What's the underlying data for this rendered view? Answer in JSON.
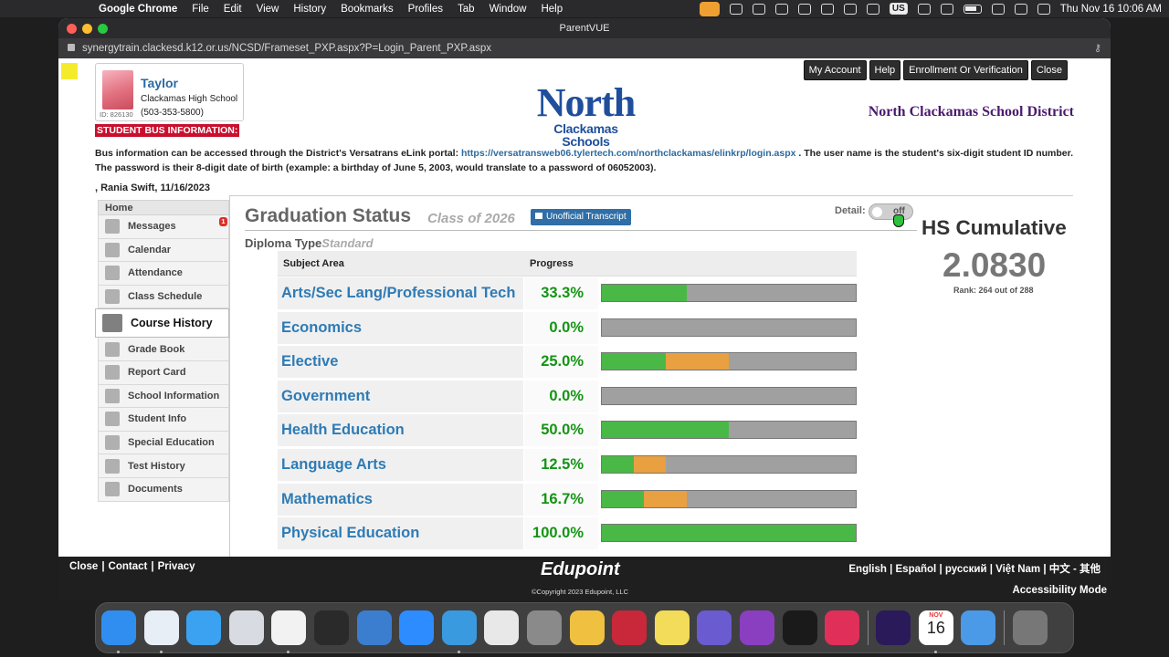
{
  "menubar": {
    "app": "Google Chrome",
    "items": [
      "File",
      "Edit",
      "View",
      "History",
      "Bookmarks",
      "Profiles",
      "Tab",
      "Window",
      "Help"
    ],
    "input_source": "US",
    "datetime": "Thu Nov 16  10:06 AM"
  },
  "window": {
    "title": "ParentVUE",
    "url": "synergytrain.clackesd.k12.or.us/NCSD/Frameset_PXP.aspx?P=Login_Parent_PXP.aspx"
  },
  "student": {
    "name": "Taylor",
    "school": "Clackamas High School",
    "phone": "(503-353-5800)",
    "id_label": "ID: 826130"
  },
  "logo": {
    "line1": "North",
    "line2": "Clackamas Schools"
  },
  "district_name": "North Clackamas School District",
  "top_buttons": [
    "My Account",
    "Help",
    "Enrollment Or Verification",
    "Close"
  ],
  "bus": {
    "heading": "STUDENT BUS INFORMATION:",
    "text_before": "Bus information can be accessed through the District's Versatrans eLink portal: ",
    "link": "https://versatransweb06.tylertech.com/northclackamas/elinkrp/login.aspx",
    "text_after": " . The user name is the student's six-digit student ID number. The password is their 8-digit date of birth (example: a birthday of June 5, 2003, would translate to a password of 06052003)."
  },
  "stamp": ", Rania Swift, 11/16/2023",
  "sidebar": {
    "home": "Home",
    "items": [
      {
        "label": "Messages",
        "icon": "messages-icon",
        "badge": "1"
      },
      {
        "label": "Calendar",
        "icon": "calendar-icon"
      },
      {
        "label": "Attendance",
        "icon": "attendance-icon"
      },
      {
        "label": "Class Schedule",
        "icon": "schedule-icon"
      },
      {
        "label": "Course History",
        "icon": "course-history-icon",
        "active": true
      },
      {
        "label": "Grade Book",
        "icon": "gradebook-icon"
      },
      {
        "label": "Report Card",
        "icon": "report-card-icon"
      },
      {
        "label": "School Information",
        "icon": "school-icon"
      },
      {
        "label": "Student Info",
        "icon": "student-icon"
      },
      {
        "label": "Special Education",
        "icon": "special-ed-icon"
      },
      {
        "label": "Test History",
        "icon": "test-history-icon"
      },
      {
        "label": "Documents",
        "icon": "documents-icon"
      }
    ]
  },
  "graduation": {
    "title": "Graduation Status",
    "class_of": "Class of 2026",
    "transcript_button": "Unofficial Transcript",
    "detail_label": "Detail:",
    "toggle_text": "off",
    "diploma_label": "Diploma Type",
    "diploma_value": "Standard",
    "col_subject": "Subject Area",
    "col_progress": "Progress",
    "subjects": [
      {
        "name": "Arts/Sec Lang/Professional Tech",
        "pct": "33.3%",
        "earned": 0.333,
        "in_progress": 0.0
      },
      {
        "name": "Economics",
        "pct": "0.0%",
        "earned": 0.0,
        "in_progress": 0.0
      },
      {
        "name": "Elective",
        "pct": "25.0%",
        "earned": 0.25,
        "in_progress": 0.25
      },
      {
        "name": "Government",
        "pct": "0.0%",
        "earned": 0.0,
        "in_progress": 0.0
      },
      {
        "name": "Health Education",
        "pct": "50.0%",
        "earned": 0.5,
        "in_progress": 0.0
      },
      {
        "name": "Language Arts",
        "pct": "12.5%",
        "earned": 0.125,
        "in_progress": 0.125
      },
      {
        "name": "Mathematics",
        "pct": "16.7%",
        "earned": 0.167,
        "in_progress": 0.167
      },
      {
        "name": "Physical Education",
        "pct": "100.0%",
        "earned": 1.0,
        "in_progress": 0.0
      }
    ],
    "colors": {
      "earned": "#4ab847",
      "in_progress": "#e8a040",
      "remaining": "#a0a0a0"
    }
  },
  "cumulative": {
    "label": "HS Cumulative",
    "value": "2.0830",
    "rank": "Rank: 264 out of 288"
  },
  "footer": {
    "links": [
      "Close",
      "Contact",
      "Privacy"
    ],
    "brand": "Edupoint",
    "copyright": "©Copyright 2023 Edupoint, LLC",
    "languages": [
      "English",
      "Español",
      "русский",
      "Việt Nam",
      "中文 - 其他"
    ],
    "accessibility": "Accessibility Mode"
  },
  "dock": [
    {
      "name": "finder",
      "color": "#2f8ef0"
    },
    {
      "name": "north-clackamas",
      "color": "#e8eef6"
    },
    {
      "name": "safari",
      "color": "#3aa2f0"
    },
    {
      "name": "screen-sharing",
      "color": "#d8dce2"
    },
    {
      "name": "chrome",
      "color": "#f2f2f2"
    },
    {
      "name": "quicktime",
      "color": "#2a2a2a"
    },
    {
      "name": "teams-helper",
      "color": "#3b7ed0"
    },
    {
      "name": "zoom",
      "color": "#2d8cff"
    },
    {
      "name": "idea",
      "color": "#3a9ae0"
    },
    {
      "name": "preview",
      "color": "#e8e8e8"
    },
    {
      "name": "system-settings",
      "color": "#8a8a8a"
    },
    {
      "name": "photos",
      "color": "#f0c040"
    },
    {
      "name": "photo-booth",
      "color": "#c8283a"
    },
    {
      "name": "notes",
      "color": "#f2dc5a"
    },
    {
      "name": "imovie",
      "color": "#6a5cd0"
    },
    {
      "name": "qr-reader",
      "color": "#8a3fc0"
    },
    {
      "name": "audio-app",
      "color": "#1a1a1a"
    },
    {
      "name": "creative-cloud",
      "color": "#e0305a"
    },
    {
      "name": "premiere-pro",
      "color": "#2a1a5a"
    },
    {
      "name": "calendar",
      "color": "#ffffff"
    },
    {
      "name": "weather",
      "color": "#4a9ae8"
    },
    {
      "name": "trash",
      "color": "#777777"
    }
  ],
  "dock_calendar": {
    "month": "NOV",
    "day": "16"
  }
}
